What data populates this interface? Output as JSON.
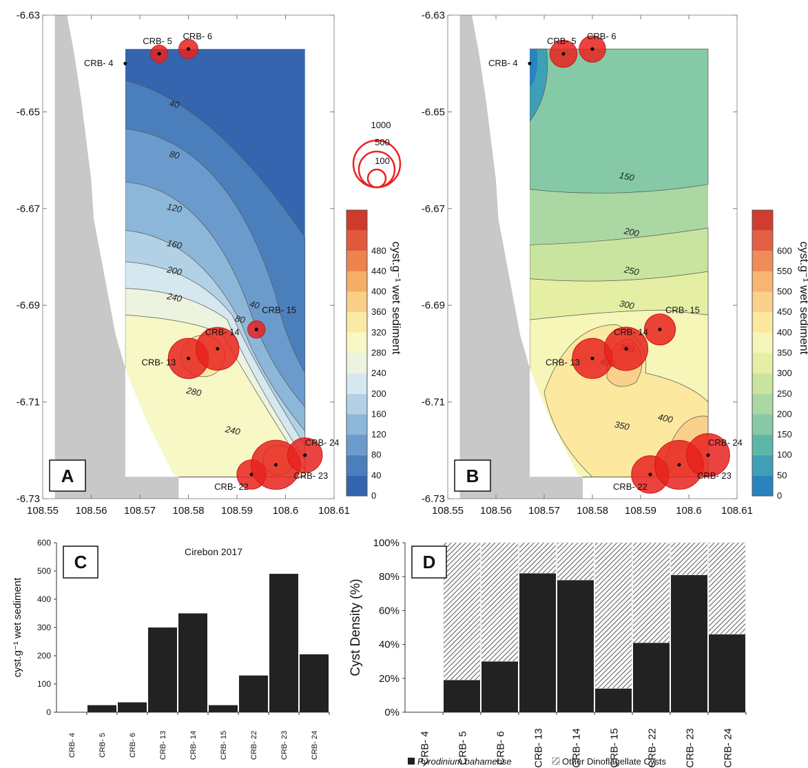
{
  "colors": {
    "land": "#c8c8c8",
    "bubble": "#e8231e",
    "bar": "#222222",
    "hatch": "#555555"
  },
  "stations": [
    "CRB- 4",
    "CRB- 5",
    "CRB- 6",
    "CRB- 13",
    "CRB- 14",
    "CRB- 15",
    "CRB- 22",
    "CRB- 23",
    "CRB- 24"
  ],
  "chart_data": [
    {
      "type": "contour-map",
      "panel_label": "A",
      "x_ticks": [
        "108.55",
        "108.56",
        "108.57",
        "108.58",
        "108.59",
        "108.6",
        "108.61"
      ],
      "y_ticks": [
        "-6.63",
        "-6.65",
        "-6.67",
        "-6.69",
        "-6.71",
        "-6.73"
      ],
      "xlim": [
        108.55,
        108.61
      ],
      "ylim": [
        -6.73,
        -6.63
      ],
      "colorbar_label": "cyst.g⁻¹ wet sediment",
      "colorbar_ticks": [
        "0",
        "40",
        "80",
        "120",
        "160",
        "200",
        "240",
        "280",
        "320",
        "360",
        "400",
        "440",
        "480"
      ],
      "colorbar_colors": [
        "#3465ae",
        "#4a7fbc",
        "#6b9bcc",
        "#8db7d9",
        "#b2d1e5",
        "#d5e7ef",
        "#ecf3df",
        "#f7f8c6",
        "#fbe9a6",
        "#f9cf85",
        "#f5ae66",
        "#ed834d",
        "#e05a3c",
        "#d03a2c"
      ],
      "contour_labels": [
        "40",
        "80",
        "120",
        "160",
        "200",
        "240",
        "280",
        "240",
        "80",
        "40"
      ],
      "stations": [
        {
          "name": "CRB- 4",
          "lon": 108.567,
          "lat": -6.64,
          "value": 0
        },
        {
          "name": "CRB- 5",
          "lon": 108.574,
          "lat": -6.638,
          "value": 25
        },
        {
          "name": "CRB- 6",
          "lon": 108.58,
          "lat": -6.637,
          "value": 35
        },
        {
          "name": "CRB- 13",
          "lon": 108.58,
          "lat": -6.701,
          "value": 300
        },
        {
          "name": "CRB- 14",
          "lon": 108.586,
          "lat": -6.699,
          "value": 350
        },
        {
          "name": "CRB- 15",
          "lon": 108.594,
          "lat": -6.695,
          "value": 25
        },
        {
          "name": "CRB- 22",
          "lon": 108.593,
          "lat": -6.725,
          "value": 130
        },
        {
          "name": "CRB- 23",
          "lon": 108.598,
          "lat": -6.723,
          "value": 490
        },
        {
          "name": "CRB- 24",
          "lon": 108.604,
          "lat": -6.721,
          "value": 205
        }
      ],
      "size_legend": [
        "1000",
        "500",
        "100"
      ]
    },
    {
      "type": "contour-map",
      "panel_label": "B",
      "x_ticks": [
        "108.55",
        "108.56",
        "108.57",
        "108.58",
        "108.59",
        "108.6",
        "108.61"
      ],
      "y_ticks": [
        "-6.63",
        "-6.65",
        "-6.67",
        "-6.69",
        "-6.71",
        "-6.73"
      ],
      "xlim": [
        108.55,
        108.61
      ],
      "ylim": [
        -6.73,
        -6.63
      ],
      "colorbar_label": "cyst.g⁻¹ wet sediment",
      "colorbar_ticks": [
        "0",
        "50",
        "100",
        "150",
        "200",
        "250",
        "300",
        "350",
        "400",
        "450",
        "500",
        "550",
        "600"
      ],
      "colorbar_colors": [
        "#2a82bf",
        "#3ea0b6",
        "#5cb7a9",
        "#86c9a6",
        "#aad7a2",
        "#c9e49e",
        "#e4efa3",
        "#f5f6b8",
        "#fde8a0",
        "#fbd08a",
        "#f7b472",
        "#f08c5a",
        "#e35f44",
        "#d13c2f"
      ],
      "contour_labels": [
        "150",
        "200",
        "250",
        "300",
        "350",
        "400",
        "350",
        "400"
      ],
      "stations": [
        {
          "name": "CRB- 4",
          "lon": 108.567,
          "lat": -6.64,
          "value": 0
        },
        {
          "name": "CRB- 5",
          "lon": 108.574,
          "lat": -6.638,
          "value": 130
        },
        {
          "name": "CRB- 6",
          "lon": 108.58,
          "lat": -6.637,
          "value": 120
        },
        {
          "name": "CRB- 13",
          "lon": 108.58,
          "lat": -6.701,
          "value": 370
        },
        {
          "name": "CRB- 14",
          "lon": 108.587,
          "lat": -6.699,
          "value": 450
        },
        {
          "name": "CRB- 15",
          "lon": 108.594,
          "lat": -6.695,
          "value": 190
        },
        {
          "name": "CRB- 22",
          "lon": 108.592,
          "lat": -6.725,
          "value": 310
        },
        {
          "name": "CRB- 23",
          "lon": 108.598,
          "lat": -6.723,
          "value": 600
        },
        {
          "name": "CRB- 24",
          "lon": 108.604,
          "lat": -6.721,
          "value": 440
        }
      ]
    },
    {
      "type": "bar",
      "panel_label": "C",
      "title": "Cirebon 2017",
      "ylabel": "cyst.g⁻¹ wet sediment",
      "categories": [
        "CRB- 4",
        "CRB- 5",
        "CRB- 6",
        "CRB- 13",
        "CRB- 14",
        "CRB- 15",
        "CRB- 22",
        "CRB- 23",
        "CRB- 24"
      ],
      "values": [
        0,
        25,
        35,
        300,
        350,
        25,
        130,
        490,
        205
      ],
      "ylim": [
        0,
        600
      ],
      "y_ticks": [
        "0",
        "100",
        "200",
        "300",
        "400",
        "500",
        "600"
      ]
    },
    {
      "type": "bar",
      "stacked": true,
      "panel_label": "D",
      "ylabel": "Cyst Density (%)",
      "categories": [
        "CRB- 4",
        "CRB- 5",
        "CRB- 6",
        "CRB- 13",
        "CRB- 14",
        "CRB- 15",
        "CRB- 22",
        "CRB- 23",
        "CRB- 24"
      ],
      "series": [
        {
          "name": "Pyrodinium bahamense",
          "values": [
            0,
            19,
            30,
            82,
            78,
            14,
            41,
            81,
            46
          ]
        },
        {
          "name": "Other Dinoflagellate Cysts",
          "values": [
            0,
            81,
            70,
            18,
            22,
            86,
            59,
            19,
            54
          ]
        }
      ],
      "ylim": [
        0,
        100
      ],
      "y_ticks": [
        "0%",
        "20%",
        "40%",
        "60%",
        "80%",
        "100%"
      ]
    }
  ]
}
